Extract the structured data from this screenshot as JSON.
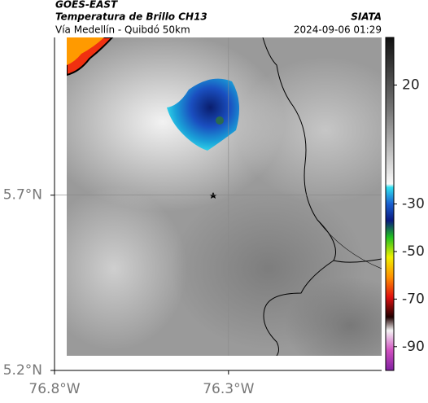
{
  "header": {
    "source": "GOES-EAST",
    "product": "Temperatura de Brillo CH13",
    "route": "Vía Medellín - Quibdó 50km",
    "agency": "SIATA",
    "timestamp": "2024-09-06 01:29"
  },
  "map": {
    "xlim": [
      -76.8,
      -75.86
    ],
    "ylim": [
      5.2,
      6.15
    ],
    "xticks": [
      {
        "value": -76.8,
        "label": "76.8°W"
      },
      {
        "value": -76.3,
        "label": "76.3°W"
      }
    ],
    "yticks": [
      {
        "value": 5.2,
        "label": "5.2°N"
      },
      {
        "value": 5.7,
        "label": "5.7°N"
      }
    ],
    "grid": true
  },
  "colorbar": {
    "lim": [
      -100,
      40
    ],
    "ticks": [
      20,
      -30,
      -50,
      -70,
      -90
    ]
  }
}
